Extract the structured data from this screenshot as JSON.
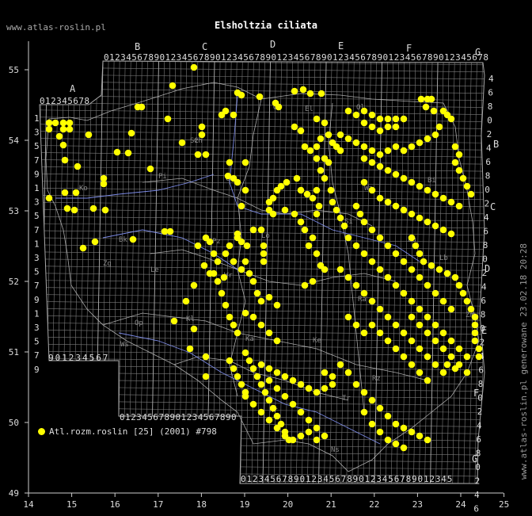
{
  "site_label": "www.atlas-roslin.pl",
  "species_title": "Elsholtzia ciliata",
  "legend_text": "Atl.rozm.roslin [25] (2001) #798",
  "generated_note": "www.atlas-roslin.pl generowane 23.02.18 20:28",
  "dot_color": "#ffff00",
  "axis": {
    "lon_ticks": [
      "14",
      "15",
      "16",
      "17",
      "18",
      "19",
      "20",
      "21",
      "22",
      "23",
      "24",
      "25"
    ],
    "lat_ticks": [
      "55",
      "54",
      "53",
      "52",
      "51",
      "50",
      "49"
    ]
  },
  "grid": {
    "column_letters": [
      "A",
      "B",
      "C",
      "D",
      "E",
      "F",
      "G"
    ],
    "right_letters": [
      "B",
      "C",
      "D",
      "E",
      "F",
      "G"
    ],
    "top_digits": "012345678901234567890123456789012345678901234567890123456789012345678",
    "a_digits": "012345678",
    "bottom_left_digits": "9012345678901234567890123456789",
    "bottom_digits": "012345678901234567890123456789012345",
    "left_digits": [
      "1",
      "3",
      "5",
      "7",
      "9",
      "1",
      "3",
      "5",
      "7",
      "1",
      "3",
      "5",
      "7",
      "9",
      "1",
      "3",
      "5",
      "7",
      "9"
    ],
    "right_digits": [
      "4",
      "6",
      "8",
      "0",
      "2",
      "4",
      "6",
      "8",
      "0",
      "2",
      "4",
      "6",
      "8",
      "0",
      "2",
      "4",
      "6",
      "8",
      "0",
      "2",
      "4",
      "6",
      "8",
      "0",
      "2",
      "4",
      "6",
      "8",
      "0",
      "2",
      "4",
      "6",
      "8"
    ],
    "region_labels": [
      "Gd",
      "Ol",
      "El",
      "Sz",
      "Pi",
      "Bi",
      "Go",
      "Wa",
      "Bk",
      "Pz",
      "Zg",
      "Le",
      "Lo",
      "Si",
      "Lb",
      "Wr",
      "Kl",
      "Ra",
      "Ke",
      "Op",
      "Ka",
      "Kr",
      "Rz",
      "Tr",
      "Ns",
      "Ch",
      "Lu",
      "Zm",
      "Ko",
      "Ws"
    ]
  }
}
